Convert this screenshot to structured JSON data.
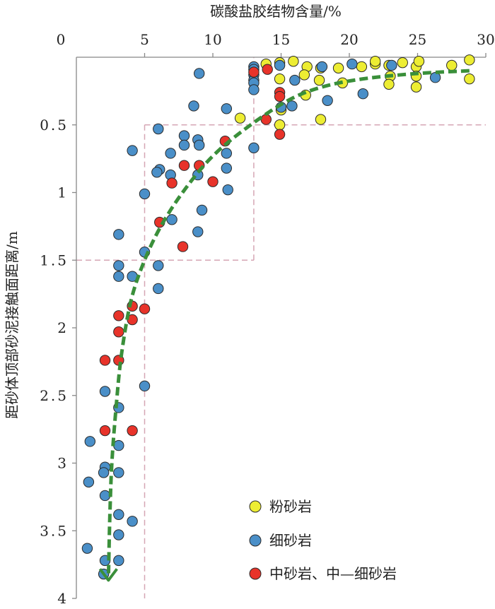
{
  "chart_data": {
    "type": "scatter",
    "title": "",
    "xlabel": "碳酸盐胶结物含量/%",
    "ylabel": "距砂体顶部砂泥接触面距离/m",
    "xlim": [
      0,
      30
    ],
    "ylim": [
      0,
      4
    ],
    "y_inverted": true,
    "x_axis_position": "top",
    "x_ticks": [
      0,
      5,
      10,
      15,
      20,
      25,
      30
    ],
    "x_tick_labels": [
      "0",
      "5",
      "10",
      "15",
      "20",
      "25",
      "30"
    ],
    "y_ticks": [
      0.5,
      1,
      1.5,
      2,
      2.5,
      3,
      3.5,
      4
    ],
    "y_tick_labels": [
      "0.5",
      "1",
      "1.5",
      "2",
      "2.5",
      "3",
      "3.5",
      "4"
    ],
    "legend_position": "bottom-right",
    "colors": {
      "siltstone": "#eded33",
      "fine_sandstone": "#4a8fc8",
      "medium_sandstone": "#e8332a",
      "trend": "#3a8f3a",
      "guide": "#d6a6b4",
      "axis": "#888888"
    },
    "series": [
      {
        "name": "粉砂岩",
        "key": "siltstone",
        "points": [
          [
            13.9,
            0.05
          ],
          [
            14.9,
            0.04
          ],
          [
            15.9,
            0.03
          ],
          [
            16.9,
            0.07
          ],
          [
            17.9,
            0.08
          ],
          [
            19.2,
            0.08
          ],
          [
            20.9,
            0.07
          ],
          [
            21.9,
            0.05
          ],
          [
            21.9,
            0.03
          ],
          [
            22.9,
            0.06
          ],
          [
            23.9,
            0.04
          ],
          [
            24.9,
            0.07
          ],
          [
            25.1,
            0.03
          ],
          [
            27.5,
            0.06
          ],
          [
            28.8,
            0.02
          ],
          [
            14.9,
            0.16
          ],
          [
            16.7,
            0.13
          ],
          [
            17.8,
            0.17
          ],
          [
            19.5,
            0.19
          ],
          [
            23.0,
            0.14
          ],
          [
            22.9,
            0.2
          ],
          [
            24.9,
            0.14
          ],
          [
            24.9,
            0.22
          ],
          [
            28.8,
            0.16
          ],
          [
            16.8,
            0.28
          ],
          [
            12.0,
            0.45
          ],
          [
            15.0,
            0.39
          ],
          [
            17.9,
            0.46
          ],
          [
            14.9,
            0.5
          ]
        ]
      },
      {
        "name": "细砂岩",
        "key": "fine_sandstone",
        "points": [
          [
            13.0,
            0.07
          ],
          [
            13.0,
            0.09
          ],
          [
            13.0,
            0.13
          ],
          [
            13.0,
            0.17
          ],
          [
            13.0,
            0.19
          ],
          [
            13.0,
            0.24
          ],
          [
            14.9,
            0.06
          ],
          [
            18.0,
            0.07
          ],
          [
            20.2,
            0.05
          ],
          [
            23.1,
            0.06
          ],
          [
            26.3,
            0.15
          ],
          [
            16.0,
            0.17
          ],
          [
            21.0,
            0.27
          ],
          [
            18.4,
            0.32
          ],
          [
            15.8,
            0.36
          ],
          [
            9.0,
            0.12
          ],
          [
            8.6,
            0.36
          ],
          [
            11.0,
            0.38
          ],
          [
            15.0,
            0.37
          ],
          [
            6.0,
            0.53
          ],
          [
            7.9,
            0.58
          ],
          [
            8.9,
            0.61
          ],
          [
            7.9,
            0.65
          ],
          [
            9.0,
            0.65
          ],
          [
            13.0,
            0.67
          ],
          [
            4.1,
            0.69
          ],
          [
            6.9,
            0.71
          ],
          [
            11.0,
            0.71
          ],
          [
            6.1,
            0.83
          ],
          [
            11.0,
            0.82
          ],
          [
            5.9,
            0.85
          ],
          [
            6.9,
            0.87
          ],
          [
            8.9,
            0.87
          ],
          [
            9.2,
            1.13
          ],
          [
            5.0,
            1.01
          ],
          [
            11.1,
            0.98
          ],
          [
            7.0,
            1.2
          ],
          [
            8.9,
            1.29
          ],
          [
            3.1,
            1.31
          ],
          [
            5.0,
            1.44
          ],
          [
            3.1,
            1.54
          ],
          [
            6.0,
            1.54
          ],
          [
            3.1,
            1.62
          ],
          [
            4.1,
            1.62
          ],
          [
            6.0,
            1.71
          ],
          [
            2.1,
            2.47
          ],
          [
            5.0,
            2.43
          ],
          [
            3.1,
            2.59
          ],
          [
            1.0,
            2.84
          ],
          [
            3.1,
            2.87
          ],
          [
            2.1,
            3.03
          ],
          [
            2.0,
            3.07
          ],
          [
            3.1,
            3.07
          ],
          [
            0.9,
            3.14
          ],
          [
            2.1,
            3.24
          ],
          [
            3.1,
            3.38
          ],
          [
            4.1,
            3.43
          ],
          [
            3.1,
            3.53
          ],
          [
            0.8,
            3.63
          ],
          [
            3.1,
            3.72
          ],
          [
            2.1,
            3.72
          ],
          [
            2.0,
            3.82
          ]
        ]
      },
      {
        "name": "中砂岩、中—细砂岩",
        "key": "medium_sandstone",
        "points": [
          [
            13.0,
            0.11
          ],
          [
            14.0,
            0.09
          ],
          [
            14.9,
            0.26
          ],
          [
            14.9,
            0.29
          ],
          [
            13.9,
            0.46
          ],
          [
            14.9,
            0.57
          ],
          [
            10.9,
            0.62
          ],
          [
            7.9,
            0.8
          ],
          [
            9.0,
            0.8
          ],
          [
            7.0,
            0.93
          ],
          [
            10.0,
            0.92
          ],
          [
            6.1,
            1.22
          ],
          [
            7.8,
            1.4
          ],
          [
            4.1,
            1.84
          ],
          [
            5.0,
            1.86
          ],
          [
            3.1,
            1.91
          ],
          [
            4.1,
            1.94
          ],
          [
            3.1,
            2.03
          ],
          [
            2.1,
            2.24
          ],
          [
            3.1,
            2.24
          ],
          [
            2.1,
            2.76
          ],
          [
            4.1,
            2.76
          ]
        ]
      }
    ],
    "trend_line": {
      "style": "dashed",
      "arrow": "end",
      "points": [
        [
          28.8,
          0.1
        ],
        [
          25.0,
          0.12
        ],
        [
          21.0,
          0.16
        ],
        [
          18.0,
          0.22
        ],
        [
          15.5,
          0.32
        ],
        [
          12.5,
          0.52
        ],
        [
          10.0,
          0.73
        ],
        [
          8.0,
          0.97
        ],
        [
          6.3,
          1.23
        ],
        [
          5.0,
          1.5
        ],
        [
          4.0,
          1.8
        ],
        [
          3.3,
          2.2
        ],
        [
          2.9,
          2.6
        ],
        [
          2.6,
          3.0
        ],
        [
          2.45,
          3.4
        ],
        [
          2.35,
          3.85
        ]
      ]
    },
    "guide_lines": [
      [
        [
          0,
          1.5
        ],
        [
          13.0,
          1.5
        ]
      ],
      [
        [
          13.0,
          1.5
        ],
        [
          13.0,
          0
        ]
      ],
      [
        [
          5.0,
          0.5
        ],
        [
          30,
          0.5
        ]
      ],
      [
        [
          5.0,
          0.5
        ],
        [
          5.0,
          4.0
        ]
      ]
    ]
  }
}
